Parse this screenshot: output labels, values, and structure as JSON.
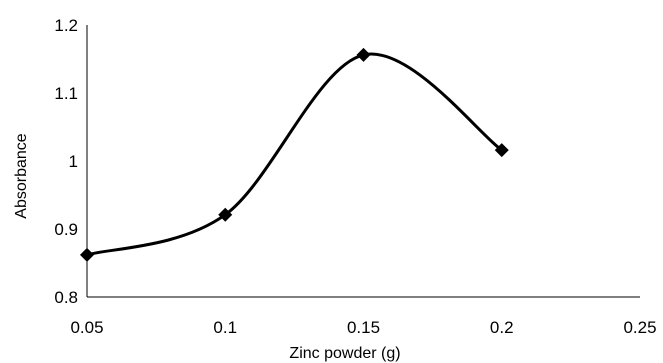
{
  "chart_data": {
    "type": "line",
    "title": "",
    "xlabel": "Zinc powder (g)",
    "ylabel": "Absorbance",
    "xlim": [
      0.05,
      0.25
    ],
    "ylim": [
      0.8,
      1.2
    ],
    "x_ticks": [
      "0.05",
      "0.1",
      "0.15",
      "0.2",
      "0.25"
    ],
    "y_ticks": [
      "0.8",
      "0.9",
      "1",
      "1.1",
      "1.2"
    ],
    "grid": false,
    "legend": false,
    "smooth": true,
    "marker": "diamond",
    "color": "#000000",
    "series": [
      {
        "x": [
          0.05,
          0.1,
          0.15,
          0.2
        ],
        "values": [
          0.862,
          0.921,
          1.156,
          1.016
        ]
      }
    ]
  }
}
